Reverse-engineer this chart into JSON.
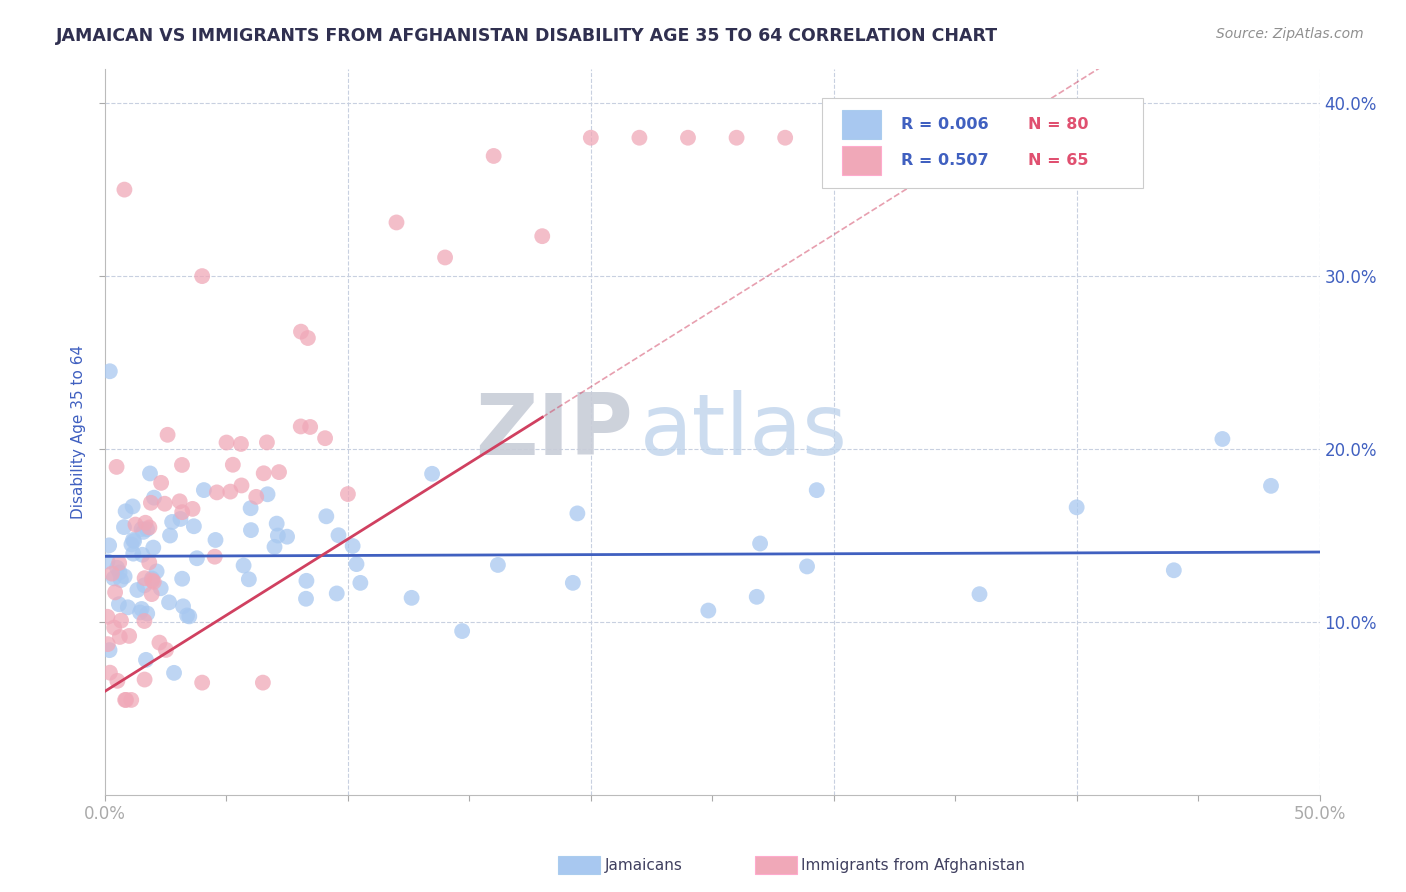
{
  "title": "JAMAICAN VS IMMIGRANTS FROM AFGHANISTAN DISABILITY AGE 35 TO 64 CORRELATION CHART",
  "source_text": "Source: ZipAtlas.com",
  "ylabel": "Disability Age 35 to 64",
  "xlim": [
    0.0,
    0.5
  ],
  "ylim": [
    0.0,
    0.42
  ],
  "watermark_zip": "ZIP",
  "watermark_atlas": "atlas",
  "legend_R1": "R = 0.006",
  "legend_N1": "N = 80",
  "legend_R2": "R = 0.507",
  "legend_N2": "N = 65",
  "blue_scatter_color": "#A8C8F0",
  "pink_scatter_color": "#F0A8B8",
  "blue_line_color": "#4060C0",
  "pink_line_color": "#D04060",
  "title_color": "#303050",
  "tick_label_color": "#4060C0",
  "grid_color": "#C8D0E0",
  "background_color": "#FFFFFF",
  "legend_R_color": "#4060C0",
  "legend_N_color": "#E05070",
  "source_color": "#909090"
}
